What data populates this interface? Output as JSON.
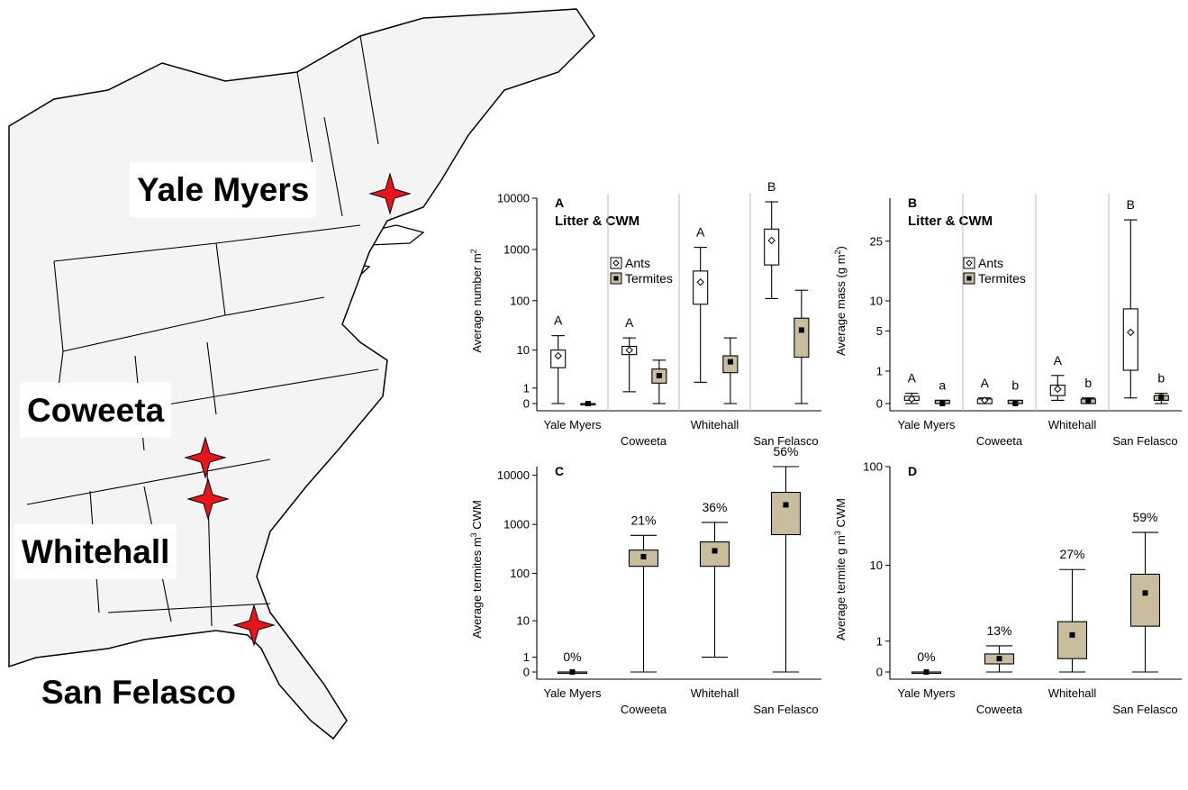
{
  "map": {
    "sites": [
      {
        "id": "yale-myers",
        "label": "Yale Myers"
      },
      {
        "id": "coweeta",
        "label": "Coweeta"
      },
      {
        "id": "whitehall",
        "label": "Whitehall"
      },
      {
        "id": "san-felasco",
        "label": "San Felasco"
      }
    ],
    "marker_color": "#e8141c",
    "land_color": "#f4f4f4"
  },
  "colors": {
    "ants_fill": "#ffffff",
    "termites_fill": "#c8bd9d",
    "stroke": "#000000",
    "divider": "#bbbbbb"
  },
  "chart_data": [
    {
      "id": "A",
      "type": "box",
      "panel_letter": "A",
      "subtitle": "Litter & CWM",
      "ylabel": "Average number m²",
      "ylabel_main": "Average number m",
      "ylabel_sup": "2",
      "ylabel_end": "",
      "scale": "pseudo-log",
      "ylim": [
        0,
        10000
      ],
      "ticks": [
        "0",
        "1",
        "10",
        "100",
        "1000",
        "10000"
      ],
      "categories": [
        "Yale Myers",
        "Coweeta",
        "Whitehall",
        "San Felasco"
      ],
      "legend": [
        "Ants",
        "Termites"
      ],
      "series": [
        {
          "name": "Ants",
          "boxes": [
            {
              "min": 0,
              "q1": 4,
              "median": 7.5,
              "q3": 10,
              "max": 20,
              "letter": "A"
            },
            {
              "min": 0.7,
              "q1": 8,
              "median": 10,
              "q3": 12,
              "max": 18,
              "letter": "A"
            },
            {
              "min": 1.6,
              "q1": 85,
              "median": 230,
              "q3": 380,
              "max": 1100,
              "letter": "A"
            },
            {
              "min": 110,
              "q1": 500,
              "median": 1500,
              "q3": 2500,
              "max": 8500,
              "letter": "B"
            }
          ]
        },
        {
          "name": "Termites",
          "boxes": [
            {
              "min": 0,
              "q1": 0,
              "median": 0,
              "q3": 0,
              "max": 0,
              "letter": ""
            },
            {
              "min": 0,
              "q1": 1.5,
              "median": 2.5,
              "q3": 3.7,
              "max": 6,
              "letter": ""
            },
            {
              "min": 0,
              "q1": 3,
              "median": 5.5,
              "q3": 7.5,
              "max": 18,
              "letter": ""
            },
            {
              "min": 0,
              "q1": 7,
              "median": 26,
              "q3": 45,
              "max": 160,
              "letter": ""
            }
          ]
        }
      ]
    },
    {
      "id": "B",
      "type": "box",
      "panel_letter": "B",
      "subtitle": "Litter & CWM",
      "ylabel": "Average mass (g m²)",
      "ylabel_main": "Average mass (g m",
      "ylabel_sup": "2",
      "ylabel_end": ")",
      "scale": "sqrt",
      "ylim": [
        0,
        40
      ],
      "ticks": [
        "0",
        "1",
        "5",
        "10",
        "25"
      ],
      "categories": [
        "Yale Myers",
        "Coweeta",
        "Whitehall",
        "San Felasco"
      ],
      "legend": [
        "Ants",
        "Termites"
      ],
      "series": [
        {
          "name": "Ants",
          "boxes": [
            {
              "min": 0,
              "q1": 0.01,
              "median": 0.02,
              "q3": 0.05,
              "max": 0.1,
              "letter": "A"
            },
            {
              "min": 0,
              "q1": 0,
              "median": 0.01,
              "q3": 0.02,
              "max": 0.03,
              "letter": "A"
            },
            {
              "min": 0.01,
              "q1": 0.06,
              "median": 0.2,
              "q3": 0.32,
              "max": 0.75,
              "letter": "A"
            },
            {
              "min": 0.03,
              "q1": 1.05,
              "median": 4.8,
              "q3": 8.5,
              "max": 32,
              "letter": "B"
            }
          ]
        },
        {
          "name": "Termites",
          "boxes": [
            {
              "min": 0,
              "q1": 0,
              "median": 0,
              "q3": 0.01,
              "max": 0.01,
              "letter": "a"
            },
            {
              "min": 0,
              "q1": 0,
              "median": 0,
              "q3": 0.01,
              "max": 0.01,
              "letter": "b"
            },
            {
              "min": 0,
              "q1": 0,
              "median": 0.01,
              "q3": 0.02,
              "max": 0.03,
              "letter": "b"
            },
            {
              "min": 0,
              "q1": 0.01,
              "median": 0.04,
              "q3": 0.06,
              "max": 0.1,
              "letter": "b"
            }
          ]
        }
      ]
    },
    {
      "id": "C",
      "type": "box",
      "panel_letter": "C",
      "subtitle": "",
      "ylabel": "Average termites m³ CWM",
      "ylabel_main": "Average termites m",
      "ylabel_sup": "3",
      "ylabel_end": " CWM",
      "scale": "pseudo-log",
      "ylim": [
        0,
        15000
      ],
      "ticks": [
        "0",
        "1",
        "10",
        "100",
        "1000",
        "10000"
      ],
      "categories": [
        "Yale Myers",
        "Coweeta",
        "Whitehall",
        "San Felasco"
      ],
      "legend": [],
      "series": [
        {
          "name": "Termites",
          "boxes": [
            {
              "min": 0,
              "q1": 0,
              "median": 0,
              "q3": 0,
              "max": 0,
              "letter": "0%"
            },
            {
              "min": 0,
              "q1": 140,
              "median": 220,
              "q3": 300,
              "max": 600,
              "letter": "21%"
            },
            {
              "min": 1,
              "q1": 140,
              "median": 290,
              "q3": 440,
              "max": 1100,
              "letter": "36%"
            },
            {
              "min": 0,
              "q1": 620,
              "median": 2500,
              "q3": 4500,
              "max": 15000,
              "letter": "56%"
            }
          ]
        }
      ]
    },
    {
      "id": "D",
      "type": "box",
      "panel_letter": "D",
      "subtitle": "",
      "ylabel": "Average termite g m³ CWM",
      "ylabel_main": "Average termite g m",
      "ylabel_sup": "3",
      "ylabel_end": " CWM",
      "scale": "pseudo-log",
      "ylim": [
        0,
        100
      ],
      "ticks": [
        "0",
        "1",
        "10",
        "100"
      ],
      "categories": [
        "Yale Myers",
        "Coweeta",
        "Whitehall",
        "San Felasco"
      ],
      "legend": [],
      "series": [
        {
          "name": "Termites",
          "boxes": [
            {
              "min": 0,
              "q1": 0,
              "median": 0,
              "q3": 0,
              "max": 0,
              "letter": "0%"
            },
            {
              "min": 0,
              "q1": 0.2,
              "median": 0.35,
              "q3": 0.5,
              "max": 0.8,
              "letter": "13%"
            },
            {
              "min": 0,
              "q1": 0.35,
              "median": 1.3,
              "q3": 2.1,
              "max": 9,
              "letter": "27%"
            },
            {
              "min": 0,
              "q1": 1.8,
              "median": 4.9,
              "q3": 8,
              "max": 22,
              "letter": "59%"
            }
          ]
        }
      ]
    }
  ]
}
